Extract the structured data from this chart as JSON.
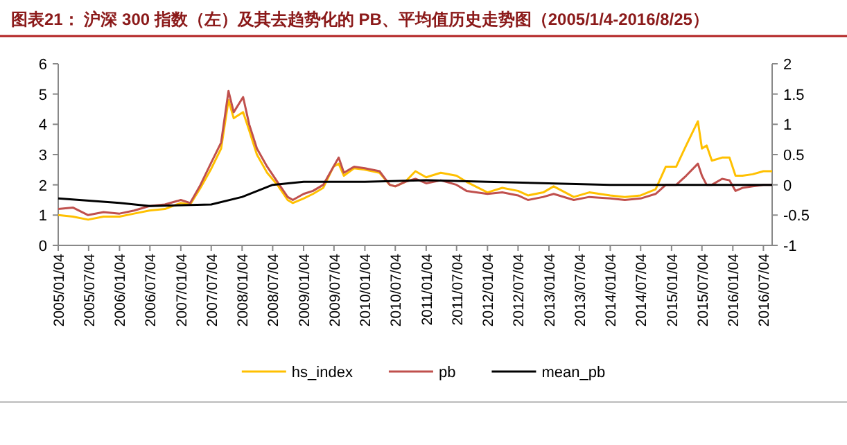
{
  "chart_data": {
    "type": "line",
    "title": "图表21：  沪深 300 指数（左）及其去趋势化的 PB、平均值历史走势图（2005/1/4-2016/8/25）",
    "xlim": [
      "2005-01-04",
      "2016-08-25"
    ],
    "xticks": [
      {
        "value": "2005-01-04",
        "label": "2005/01/04"
      },
      {
        "value": "2005-07-04",
        "label": "2005/07/04"
      },
      {
        "value": "2006-01-04",
        "label": "2006/01/04"
      },
      {
        "value": "2006-07-04",
        "label": "2006/07/04"
      },
      {
        "value": "2007-01-04",
        "label": "2007/01/04"
      },
      {
        "value": "2007-07-04",
        "label": "2007/07/04"
      },
      {
        "value": "2008-01-04",
        "label": "2008/01/04"
      },
      {
        "value": "2008-07-04",
        "label": "2008/07/04"
      },
      {
        "value": "2009-01-04",
        "label": "2009/01/04"
      },
      {
        "value": "2009-07-04",
        "label": "2009/07/04"
      },
      {
        "value": "2010-01-04",
        "label": "2010/01/04"
      },
      {
        "value": "2010-07-04",
        "label": "2010/07/04"
      },
      {
        "value": "2011-01-04",
        "label": "2011/01/04"
      },
      {
        "value": "2011-07-04",
        "label": "2011/07/04"
      },
      {
        "value": "2012-01-04",
        "label": "2012/01/04"
      },
      {
        "value": "2012-07-04",
        "label": "2012/07/04"
      },
      {
        "value": "2013-01-04",
        "label": "2013/01/04"
      },
      {
        "value": "2013-07-04",
        "label": "2013/07/04"
      },
      {
        "value": "2014-01-04",
        "label": "2014/01/04"
      },
      {
        "value": "2014-07-04",
        "label": "2014/07/04"
      },
      {
        "value": "2015-01-04",
        "label": "2015/01/04"
      },
      {
        "value": "2015-07-04",
        "label": "2015/07/04"
      },
      {
        "value": "2016-01-04",
        "label": "2016/01/04"
      },
      {
        "value": "2016-07-04",
        "label": "2016/07/04"
      }
    ],
    "ylim": [
      0,
      6
    ],
    "yticks": [
      0,
      1,
      2,
      3,
      4,
      5,
      6
    ],
    "y2lim": [
      -1,
      2
    ],
    "y2ticks": [
      -1,
      -0.5,
      0,
      0.5,
      1,
      1.5,
      2
    ],
    "legend": "bottom",
    "grid": false,
    "series": [
      {
        "name": "hs_index",
        "color": "#ffc000",
        "x": [
          "2005-01-04",
          "2005-04-01",
          "2005-07-01",
          "2005-10-01",
          "2006-01-04",
          "2006-04-01",
          "2006-07-01",
          "2006-10-01",
          "2007-01-04",
          "2007-03-01",
          "2007-05-01",
          "2007-07-01",
          "2007-09-01",
          "2007-10-15",
          "2007-11-15",
          "2008-01-10",
          "2008-02-15",
          "2008-04-01",
          "2008-06-01",
          "2008-08-01",
          "2008-10-01",
          "2008-11-01",
          "2009-01-04",
          "2009-03-01",
          "2009-05-01",
          "2009-07-01",
          "2009-08-01",
          "2009-09-01",
          "2009-11-01",
          "2010-01-04",
          "2010-04-01",
          "2010-06-01",
          "2010-07-04",
          "2010-09-01",
          "2010-11-01",
          "2011-01-04",
          "2011-04-01",
          "2011-07-04",
          "2011-09-01",
          "2012-01-04",
          "2012-04-01",
          "2012-07-04",
          "2012-09-01",
          "2012-12-01",
          "2013-02-01",
          "2013-06-01",
          "2013-09-01",
          "2014-01-04",
          "2014-04-01",
          "2014-07-04",
          "2014-10-01",
          "2014-12-01",
          "2015-02-01",
          "2015-04-01",
          "2015-06-10",
          "2015-07-04",
          "2015-08-01",
          "2015-09-01",
          "2015-11-01",
          "2015-12-15",
          "2016-01-20",
          "2016-03-01",
          "2016-05-01",
          "2016-07-04",
          "2016-08-25"
        ],
        "values": [
          1.0,
          0.95,
          0.85,
          0.95,
          0.95,
          1.05,
          1.15,
          1.2,
          1.4,
          1.35,
          1.9,
          2.5,
          3.2,
          4.8,
          4.2,
          4.4,
          3.8,
          3.0,
          2.4,
          2.0,
          1.5,
          1.4,
          1.55,
          1.7,
          1.9,
          2.6,
          2.7,
          2.3,
          2.55,
          2.5,
          2.4,
          2.0,
          1.95,
          2.1,
          2.45,
          2.25,
          2.4,
          2.3,
          2.1,
          1.75,
          1.9,
          1.8,
          1.65,
          1.75,
          1.95,
          1.6,
          1.75,
          1.65,
          1.6,
          1.65,
          1.85,
          2.6,
          2.6,
          3.3,
          4.1,
          3.2,
          3.3,
          2.8,
          2.9,
          2.9,
          2.3,
          2.3,
          2.35,
          2.45,
          2.45
        ]
      },
      {
        "name": "pb",
        "color": "#c0504d",
        "x": [
          "2005-01-04",
          "2005-04-01",
          "2005-07-01",
          "2005-10-01",
          "2006-01-04",
          "2006-04-01",
          "2006-07-01",
          "2006-10-01",
          "2007-01-04",
          "2007-03-01",
          "2007-05-01",
          "2007-07-01",
          "2007-09-01",
          "2007-10-15",
          "2007-11-15",
          "2008-01-10",
          "2008-02-15",
          "2008-04-01",
          "2008-06-01",
          "2008-08-01",
          "2008-10-01",
          "2008-11-01",
          "2009-01-04",
          "2009-03-01",
          "2009-05-01",
          "2009-07-01",
          "2009-08-01",
          "2009-09-01",
          "2009-11-01",
          "2010-01-04",
          "2010-04-01",
          "2010-06-01",
          "2010-07-04",
          "2010-09-01",
          "2010-11-01",
          "2011-01-04",
          "2011-04-01",
          "2011-07-04",
          "2011-09-01",
          "2012-01-04",
          "2012-04-01",
          "2012-07-04",
          "2012-09-01",
          "2012-12-01",
          "2013-02-01",
          "2013-06-01",
          "2013-09-01",
          "2014-01-04",
          "2014-04-01",
          "2014-07-04",
          "2014-10-01",
          "2014-12-01",
          "2015-02-01",
          "2015-04-01",
          "2015-06-10",
          "2015-07-04",
          "2015-08-01",
          "2015-09-01",
          "2015-11-01",
          "2015-12-15",
          "2016-01-20",
          "2016-03-01",
          "2016-05-01",
          "2016-07-04",
          "2016-08-25"
        ],
        "values": [
          1.2,
          1.25,
          1.0,
          1.1,
          1.05,
          1.15,
          1.3,
          1.35,
          1.5,
          1.4,
          2.0,
          2.7,
          3.4,
          5.1,
          4.4,
          4.9,
          4.0,
          3.2,
          2.6,
          2.1,
          1.6,
          1.5,
          1.7,
          1.8,
          2.0,
          2.6,
          2.9,
          2.4,
          2.6,
          2.55,
          2.45,
          2.0,
          1.95,
          2.1,
          2.2,
          2.05,
          2.15,
          2.0,
          1.8,
          1.7,
          1.75,
          1.65,
          1.5,
          1.6,
          1.7,
          1.5,
          1.6,
          1.55,
          1.5,
          1.55,
          1.7,
          2.0,
          2.0,
          2.3,
          2.7,
          2.3,
          2.0,
          2.0,
          2.2,
          2.15,
          1.8,
          1.9,
          1.95,
          2.0,
          2.0
        ]
      },
      {
        "name": "mean_pb",
        "color": "#000000",
        "x": [
          "2005-01-04",
          "2006-01-04",
          "2006-07-04",
          "2007-07-04",
          "2008-01-04",
          "2008-07-04",
          "2009-01-04",
          "2010-01-04",
          "2011-01-04",
          "2012-01-04",
          "2014-01-04",
          "2016-08-25"
        ],
        "values": [
          1.55,
          1.4,
          1.3,
          1.35,
          1.6,
          2.0,
          2.1,
          2.1,
          2.15,
          2.1,
          2.0,
          2.0
        ]
      }
    ]
  }
}
